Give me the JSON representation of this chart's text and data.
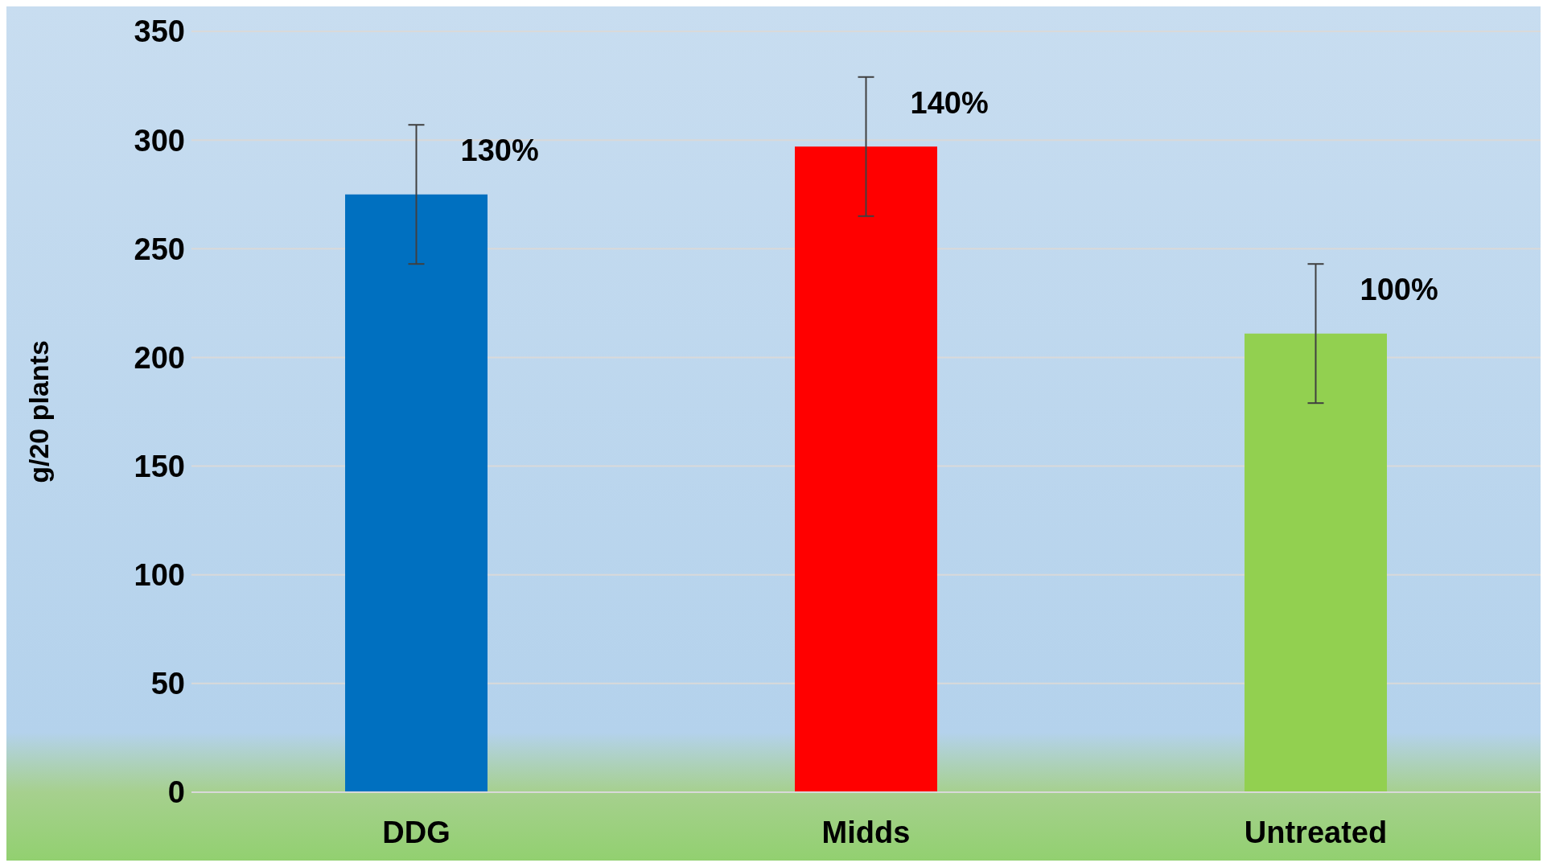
{
  "chart_data": {
    "type": "bar",
    "ylabel": "g/20 plants",
    "categories": [
      "DDG",
      "Midds",
      "Untreated"
    ],
    "values": [
      275,
      297,
      211
    ],
    "colors": [
      "#0070c0",
      "#ff0000",
      "#92d050"
    ],
    "errors": [
      32,
      32,
      32
    ],
    "annotations": [
      {
        "text": "130%",
        "x": "DDG",
        "y": 275
      },
      {
        "text": "140%",
        "x": "Midds",
        "y": 297
      },
      {
        "text": "100%",
        "x": "Untreated",
        "y": 211
      }
    ],
    "ylim": [
      0,
      350
    ],
    "yticks": [
      0,
      50,
      100,
      150,
      200,
      250,
      300,
      350
    ],
    "grid": "y"
  }
}
